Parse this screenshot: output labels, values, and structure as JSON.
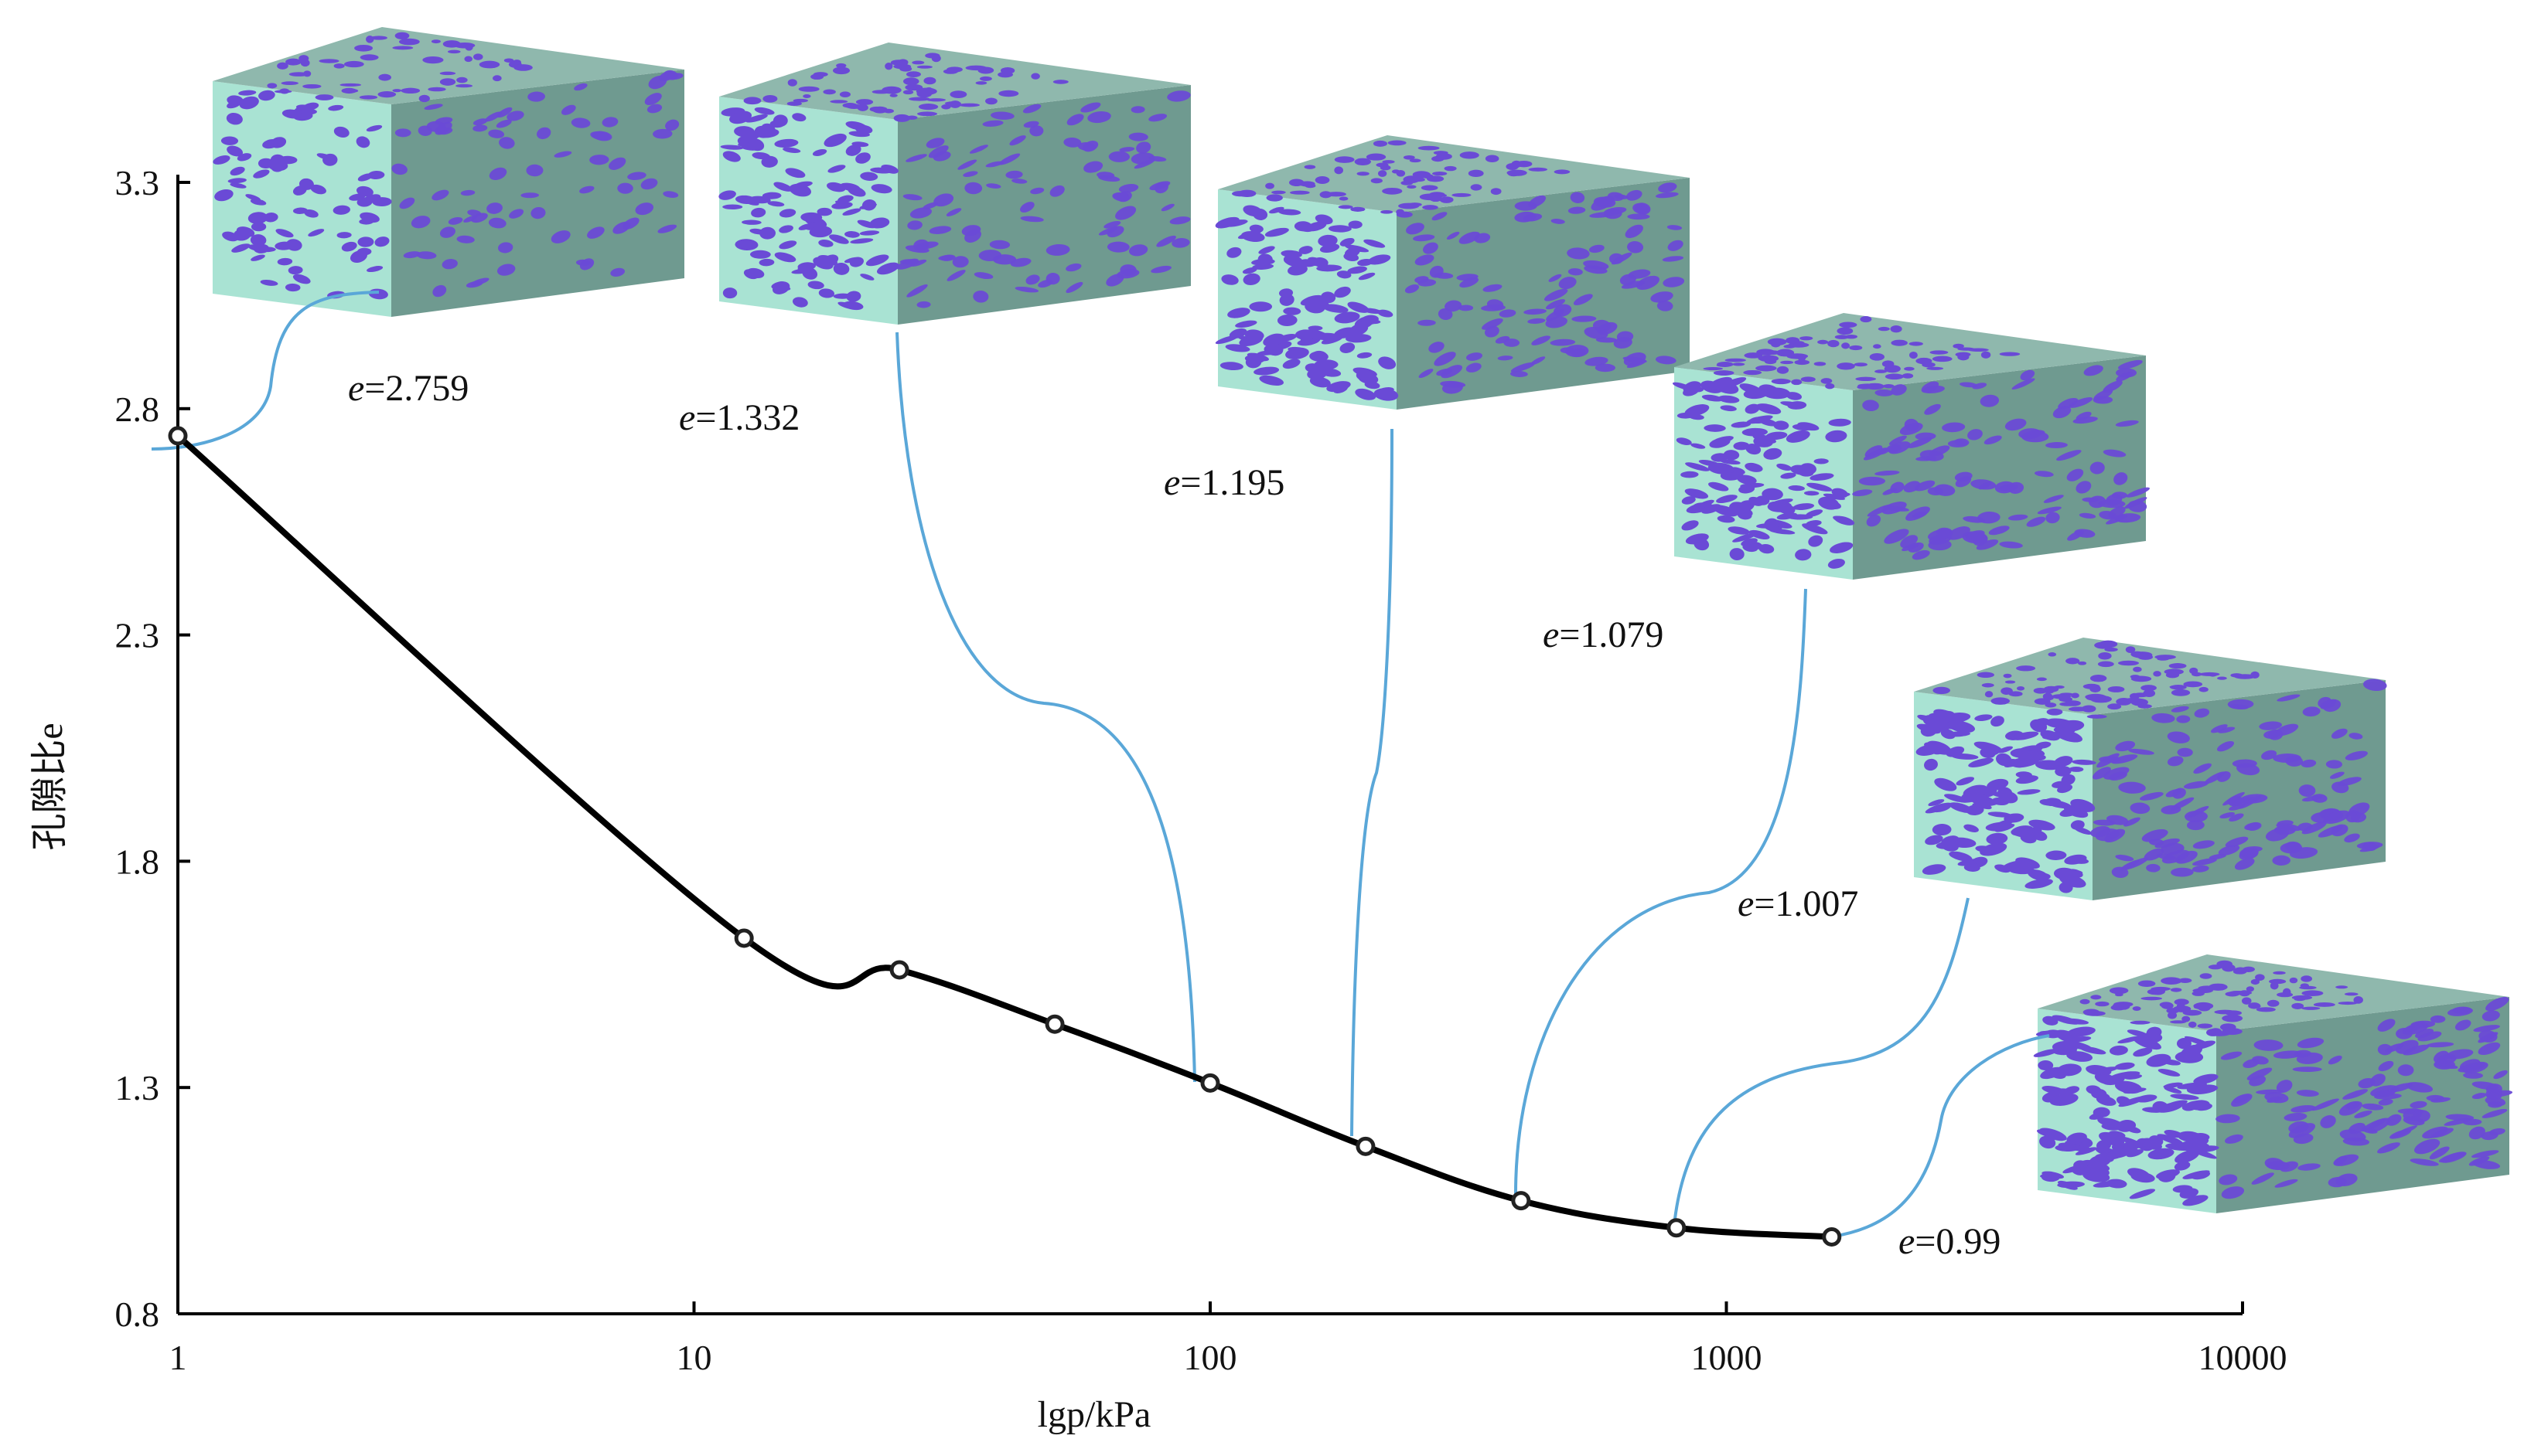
{
  "chart_data": {
    "type": "line",
    "xlabel": "lgp/kPa",
    "ylabel": "孔隙比e",
    "xscale": "log",
    "xlim": [
      1,
      10000
    ],
    "ylim": [
      0.8,
      3.3
    ],
    "xticks": [
      "1",
      "10",
      "100",
      "1000",
      "10000"
    ],
    "yticks": [
      "0.8",
      "1.3",
      "1.8",
      "2.3",
      "2.8",
      "3.3"
    ],
    "series": [
      {
        "x": [
          1,
          12.5,
          25,
          50,
          100,
          200,
          400,
          800,
          1600
        ],
        "y": [
          2.74,
          1.63,
          1.56,
          1.44,
          1.31,
          1.17,
          1.05,
          0.99,
          0.97
        ]
      }
    ],
    "annotations": [
      {
        "label": "e",
        "value": "=2.759",
        "x": 1
      },
      {
        "label": "e",
        "value": "=1.332",
        "x": 100
      },
      {
        "label": "e",
        "value": "=1.195",
        "x": 200
      },
      {
        "label": "e",
        "value": "=1.079",
        "x": 400
      },
      {
        "label": "e",
        "value": "=1.007",
        "x": 800
      },
      {
        "label": "e",
        "value": "=0.99",
        "x": 1600
      }
    ],
    "grid": false,
    "colors": {
      "curve": "#000000",
      "leader": "#5aa7d8",
      "cube_matrix": "#a9e3d3",
      "cube_side": "#6f9a90",
      "cube_pores": "#6a4ad6"
    }
  }
}
